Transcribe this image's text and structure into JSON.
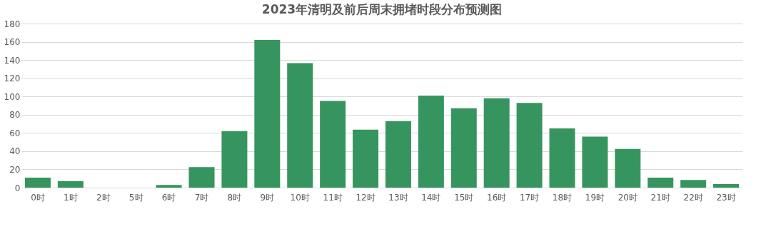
{
  "chart_data": {
    "type": "bar",
    "title": "2023年清明及前后周末拥堵时段分布预测图",
    "categories": [
      "0时",
      "1时",
      "2时",
      "5时",
      "6时",
      "7时",
      "8时",
      "9时",
      "10时",
      "11时",
      "12时",
      "13时",
      "14时",
      "15时",
      "16时",
      "17时",
      "18时",
      "19时",
      "20时",
      "21时",
      "22时",
      "23时"
    ],
    "series": [
      {
        "color": "#36955f",
        "values": [
          11,
          7,
          0,
          0,
          3,
          22.5,
          62,
          162,
          136.5,
          95,
          63.5,
          73,
          101,
          87,
          98,
          93,
          65,
          56,
          42.5,
          11,
          8.5,
          4
        ]
      }
    ],
    "ylim": [
      0,
      180
    ],
    "yticks": [
      0,
      20,
      40,
      60,
      80,
      100,
      120,
      140,
      160,
      180
    ],
    "grid": "y",
    "legend": false
  }
}
